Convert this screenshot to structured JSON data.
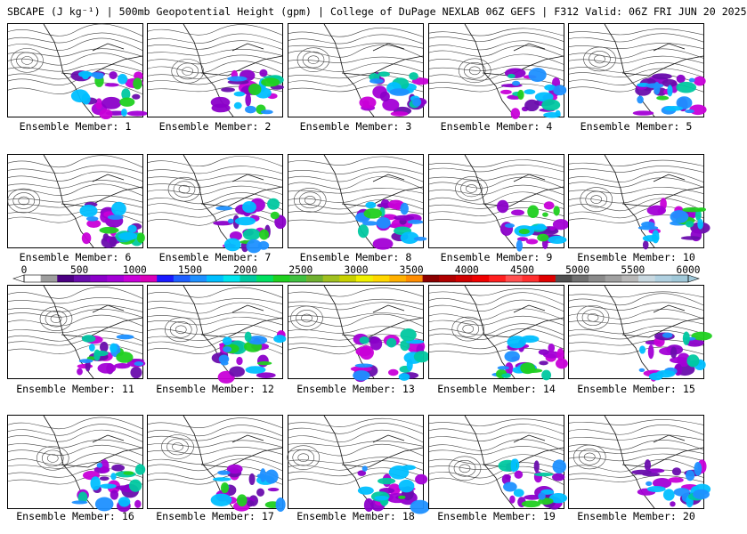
{
  "header": {
    "title": "SBCAPE (J kg⁻¹) | 500mb Geopotential Height (gpm) | College of DuPage NEXLAB 06Z GEFS | F312 Valid: 06Z FRI JUN 20 2025"
  },
  "panels": [
    {
      "label": "Ensemble Member: 1"
    },
    {
      "label": "Ensemble Member: 2"
    },
    {
      "label": "Ensemble Member: 3"
    },
    {
      "label": "Ensemble Member: 4"
    },
    {
      "label": "Ensemble Member: 5"
    },
    {
      "label": "Ensemble Member: 6"
    },
    {
      "label": "Ensemble Member: 7"
    },
    {
      "label": "Ensemble Member: 8"
    },
    {
      "label": "Ensemble Member: 9"
    },
    {
      "label": "Ensemble Member: 10"
    },
    {
      "label": "Ensemble Member: 11"
    },
    {
      "label": "Ensemble Member: 12"
    },
    {
      "label": "Ensemble Member: 13"
    },
    {
      "label": "Ensemble Member: 14"
    },
    {
      "label": "Ensemble Member: 15"
    },
    {
      "label": "Ensemble Member: 16"
    },
    {
      "label": "Ensemble Member: 17"
    },
    {
      "label": "Ensemble Member: 18"
    },
    {
      "label": "Ensemble Member: 19"
    },
    {
      "label": "Ensemble Member: 20"
    }
  ],
  "colorbar": {
    "labels": [
      "0",
      "500",
      "1000",
      "1500",
      "2000",
      "2500",
      "3000",
      "3500",
      "4000",
      "4500",
      "5000",
      "5500",
      "6000"
    ],
    "colors": [
      "#ffffff",
      "#9e9e9e",
      "#4b0082",
      "#6a0dad",
      "#8b00c9",
      "#a300d6",
      "#c800d8",
      "#d800b8",
      "#1a1aff",
      "#1e5fff",
      "#1e90ff",
      "#00bfff",
      "#00e5ee",
      "#00c8a0",
      "#00e060",
      "#20d020",
      "#40c040",
      "#70b030",
      "#a0c020",
      "#c8d000",
      "#f0f000",
      "#ffd700",
      "#ffb000",
      "#ff8c00",
      "#8b0000",
      "#b00000",
      "#d00000",
      "#f00000",
      "#ff2020",
      "#ff5050",
      "#ff3030",
      "#e00000",
      "#505050",
      "#707070",
      "#8a8a8a",
      "#a0a0a0",
      "#b8b8b8",
      "#c8d8e0",
      "#b0d0e0",
      "#a0c8d8"
    ]
  }
}
